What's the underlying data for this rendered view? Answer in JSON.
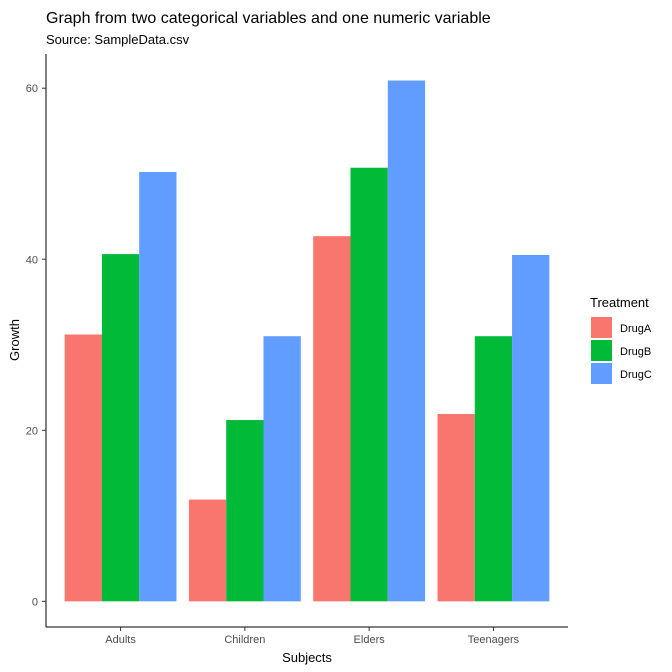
{
  "chart_data": {
    "type": "bar",
    "title": "Graph from two categorical variables and one numeric variable",
    "subtitle": "Source: SampleData.csv",
    "xlabel": "Subjects",
    "ylabel": "Growth",
    "categories": [
      "Adults",
      "Children",
      "Elders",
      "Teenagers"
    ],
    "series": [
      {
        "name": "DrugA",
        "color": "#F8766D",
        "values": [
          31.2,
          11.9,
          42.7,
          21.9
        ]
      },
      {
        "name": "DrugB",
        "color": "#00BA38",
        "values": [
          40.6,
          21.2,
          50.7,
          31.0
        ]
      },
      {
        "name": "DrugC",
        "color": "#619CFF",
        "values": [
          50.2,
          31.0,
          60.9,
          40.5
        ]
      }
    ],
    "ylim": [
      -3,
      64
    ],
    "yticks": [
      0,
      20,
      40,
      60
    ],
    "ytick_labels": [
      "0",
      "20",
      "40",
      "60"
    ],
    "legend": {
      "title": "Treatment",
      "position": "right"
    },
    "grid": false
  }
}
